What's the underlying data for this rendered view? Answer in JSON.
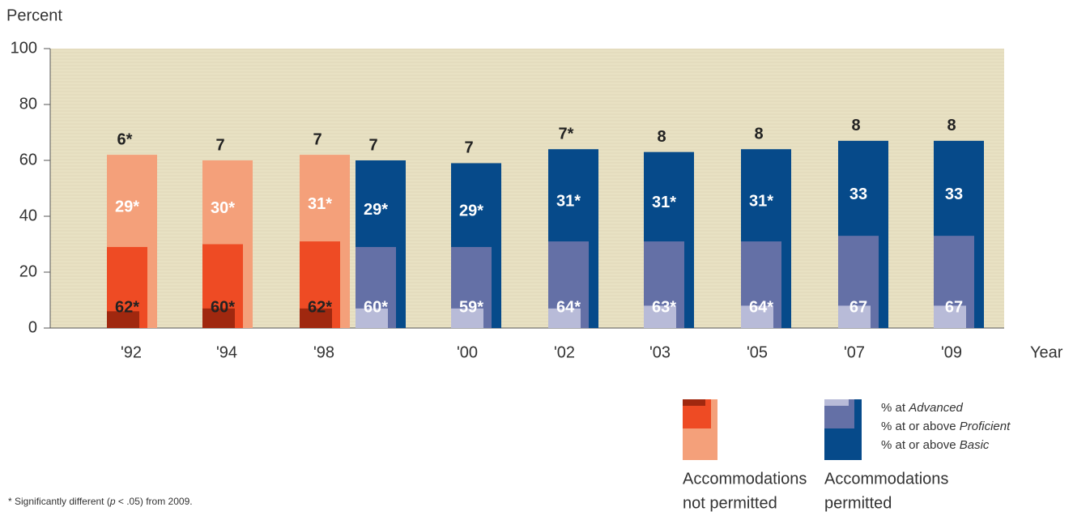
{
  "chart_data": {
    "type": "overlapping-bar",
    "y_axis_label": "Percent",
    "x_axis_label": "Year",
    "categories": [
      "'92",
      "'94",
      "'98",
      "'00",
      "'02",
      "'03",
      "'05",
      "'07",
      "'09"
    ],
    "ylim": [
      0,
      100
    ],
    "yticks": [
      0,
      20,
      40,
      60,
      80,
      100
    ],
    "groups": [
      {
        "legend_label": [
          "Accommodations",
          "not permitted"
        ],
        "series": [
          {
            "level": "basic",
            "color": "#f4a07a",
            "label_color": "#222222",
            "values": [
              62,
              60,
              62,
              null,
              null,
              null,
              null,
              null,
              null
            ],
            "value_labels": [
              "62*",
              "60*",
              "62*",
              null,
              null,
              null,
              null,
              null,
              null
            ]
          },
          {
            "level": "proficient",
            "color": "#ee4b24",
            "label_color": "#ffffff",
            "values": [
              29,
              30,
              31,
              null,
              null,
              null,
              null,
              null,
              null
            ],
            "value_labels": [
              "29*",
              "30*",
              "31*",
              null,
              null,
              null,
              null,
              null,
              null
            ]
          },
          {
            "level": "advanced",
            "color": "#a0280f",
            "label_color": "#222222",
            "values": [
              6,
              7,
              7,
              null,
              null,
              null,
              null,
              null,
              null
            ],
            "value_labels": [
              "6*",
              "7",
              "7",
              null,
              null,
              null,
              null,
              null,
              null
            ]
          }
        ]
      },
      {
        "legend_label": [
          "Accommodations",
          "permitted"
        ],
        "series": [
          {
            "level": "basic",
            "color": "#064a8a",
            "label_color": "#ffffff",
            "values": [
              null,
              null,
              60,
              59,
              64,
              63,
              64,
              67,
              67
            ],
            "value_labels": [
              null,
              null,
              "60*",
              "59*",
              "64*",
              "63*",
              "64*",
              "67",
              "67"
            ]
          },
          {
            "level": "proficient",
            "color": "#6470a6",
            "label_color": "#ffffff",
            "values": [
              null,
              null,
              29,
              29,
              31,
              31,
              31,
              33,
              33
            ],
            "value_labels": [
              null,
              null,
              "29*",
              "29*",
              "31*",
              "31*",
              "31*",
              "33",
              "33"
            ]
          },
          {
            "level": "advanced",
            "color": "#b8bbd8",
            "label_color": "#222222",
            "values": [
              null,
              null,
              7,
              7,
              7,
              8,
              8,
              8,
              8
            ],
            "value_labels": [
              null,
              null,
              "7",
              "7",
              "7*",
              "8",
              "8",
              "8",
              "8"
            ]
          }
        ]
      }
    ],
    "legend": [
      {
        "prefix": "% at",
        "term": "Advanced"
      },
      {
        "prefix": "% at or above",
        "term": "Proficient"
      },
      {
        "prefix": "% at or above",
        "term": "Basic"
      }
    ],
    "footnote": {
      "prefix": "* Significantly different (",
      "italic": "p",
      "suffix": " < .05) from 2009."
    }
  }
}
